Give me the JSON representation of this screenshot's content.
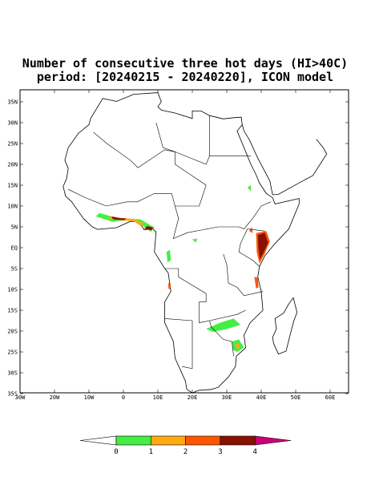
{
  "title": [
    "Number of consecutive three hot days (HI>40C)",
    "period: [20240215 - 20240220], ICON model"
  ],
  "map": {
    "lat_labels": [
      "35N",
      "30N",
      "25N",
      "20N",
      "15N",
      "10N",
      "5N",
      "EQ",
      "5S",
      "10S",
      "15S",
      "20S",
      "25S",
      "30S",
      "35S"
    ],
    "lon_labels": [
      "30W",
      "20W",
      "10W",
      "0",
      "10E",
      "20E",
      "30E",
      "40E",
      "50E",
      "60E"
    ]
  },
  "colorbar": {
    "levels": [
      0,
      1,
      2,
      3,
      4
    ],
    "colors": [
      "#ffffff",
      "#44ee44",
      "#ffaa11",
      "#ff5500",
      "#881100",
      "#cc0077"
    ]
  }
}
